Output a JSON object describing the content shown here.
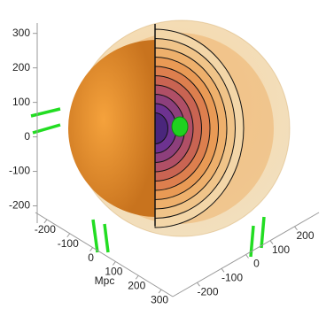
{
  "chart_data": {
    "type": "surface3d",
    "xlabel": "Mpc",
    "xlim": [
      -250,
      350
    ],
    "xticks": [
      -200,
      -100,
      0,
      100,
      200,
      300
    ],
    "ylim": [
      -300,
      300
    ],
    "yticks": [
      -200,
      -100,
      0,
      100,
      200
    ],
    "zlim": [
      -250,
      330
    ],
    "zticks": [
      -200,
      -100,
      0,
      100,
      200,
      300
    ]
  }
}
